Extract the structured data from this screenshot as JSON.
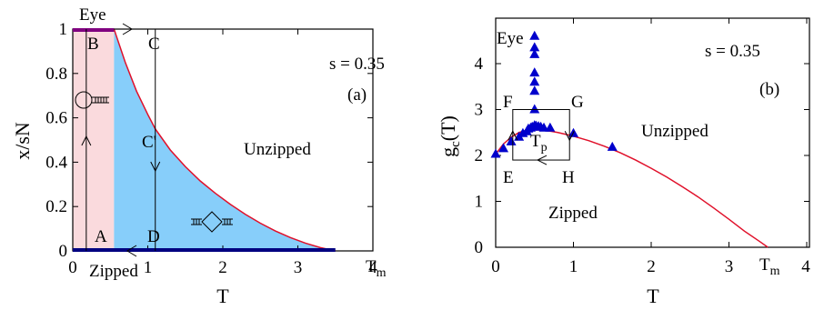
{
  "chart_data": [
    {
      "type": "area",
      "panel_label": "(a)",
      "xlabel": "T",
      "ylabel": "x/sN",
      "xlim": [
        0,
        4
      ],
      "ylim": [
        0,
        1
      ],
      "x_ticks": [
        "0",
        "1",
        "2",
        "3",
        "4"
      ],
      "y_ticks": [
        "0",
        "0.2",
        "0.4",
        "0.6",
        "0.8",
        "1"
      ],
      "x_special_tick": {
        "label": "T",
        "sub": "m",
        "x": 3.5
      },
      "param_text": "s = 0.35",
      "regions": {
        "unzipped": "Unzipped",
        "zipped": "Zipped",
        "eye": "Eye"
      },
      "point_labels": {
        "A": "A",
        "B": "B",
        "C": "C",
        "C_prime": "C'",
        "D": "D"
      },
      "boundary_curve": {
        "x": [
          0.55,
          0.7,
          0.85,
          1.0,
          1.1,
          1.3,
          1.5,
          1.7,
          1.9,
          2.1,
          2.3,
          2.5,
          2.7,
          2.9,
          3.1,
          3.3,
          3.5
        ],
        "y": [
          1.0,
          0.85,
          0.72,
          0.615,
          0.55,
          0.455,
          0.38,
          0.315,
          0.26,
          0.21,
          0.165,
          0.125,
          0.09,
          0.06,
          0.035,
          0.015,
          0.0
        ]
      },
      "eye_region_x": [
        0.0,
        0.55
      ],
      "path_x": [
        0.18,
        1.1
      ],
      "colors": {
        "eye_fill": "#fadadd",
        "zipped_mixed_fill": "#87cefa",
        "curve": "#e0102a",
        "edge": "#000080",
        "top_edge": "#800080"
      }
    },
    {
      "type": "line",
      "panel_label": "(b)",
      "xlabel": "T",
      "ylabel": "g",
      "ylabel_sub": "c",
      "ylabel_suffix": "(T)",
      "xlim": [
        -0.05,
        4
      ],
      "ylim": [
        0,
        4.8
      ],
      "x_ticks": [
        "0",
        "1",
        "2",
        "3",
        "4"
      ],
      "y_ticks": [
        "0",
        "1",
        "2",
        "3",
        "4"
      ],
      "x_special_tick": {
        "label": "T",
        "sub": "m",
        "x": 3.5
      },
      "param_text": "s = 0.35",
      "regions": {
        "unzipped": "Unzipped",
        "zipped": "Zipped",
        "eye": "Eye"
      },
      "point_labels": {
        "E": "E",
        "F": "F",
        "G": "G",
        "H": "H",
        "Tp": "T",
        "Tp_sub": "p"
      },
      "curve": {
        "x": [
          0.0,
          0.1,
          0.2,
          0.3,
          0.4,
          0.5,
          0.6,
          0.7,
          0.8,
          0.9,
          1.0,
          1.2,
          1.4,
          1.6,
          1.8,
          2.0,
          2.2,
          2.4,
          2.6,
          2.8,
          3.0,
          3.2,
          3.4,
          3.5
        ],
        "y": [
          2.03,
          2.25,
          2.4,
          2.5,
          2.55,
          2.56,
          2.55,
          2.53,
          2.5,
          2.46,
          2.42,
          2.32,
          2.2,
          2.06,
          1.9,
          1.72,
          1.53,
          1.32,
          1.1,
          0.86,
          0.61,
          0.35,
          0.12,
          0.0
        ]
      },
      "markers": {
        "x": [
          0.0,
          0.1,
          0.2,
          0.3,
          0.35,
          0.4,
          0.42,
          0.45,
          0.47,
          0.5,
          0.52,
          0.55,
          0.58,
          0.62,
          0.7,
          1.0,
          1.5,
          0.5,
          0.5,
          0.5,
          0.5,
          0.5,
          0.5,
          0.5
        ],
        "y": [
          2.03,
          2.15,
          2.3,
          2.4,
          2.48,
          2.52,
          2.58,
          2.6,
          2.62,
          2.65,
          2.64,
          2.63,
          2.62,
          2.6,
          2.6,
          2.48,
          2.18,
          3.0,
          3.4,
          3.6,
          3.8,
          4.2,
          4.35,
          4.6
        ]
      },
      "box": {
        "x": [
          0.22,
          0.95
        ],
        "y": [
          1.9,
          3.0
        ]
      },
      "colors": {
        "curve": "#e0102a",
        "marker": "#0000cc"
      }
    }
  ]
}
